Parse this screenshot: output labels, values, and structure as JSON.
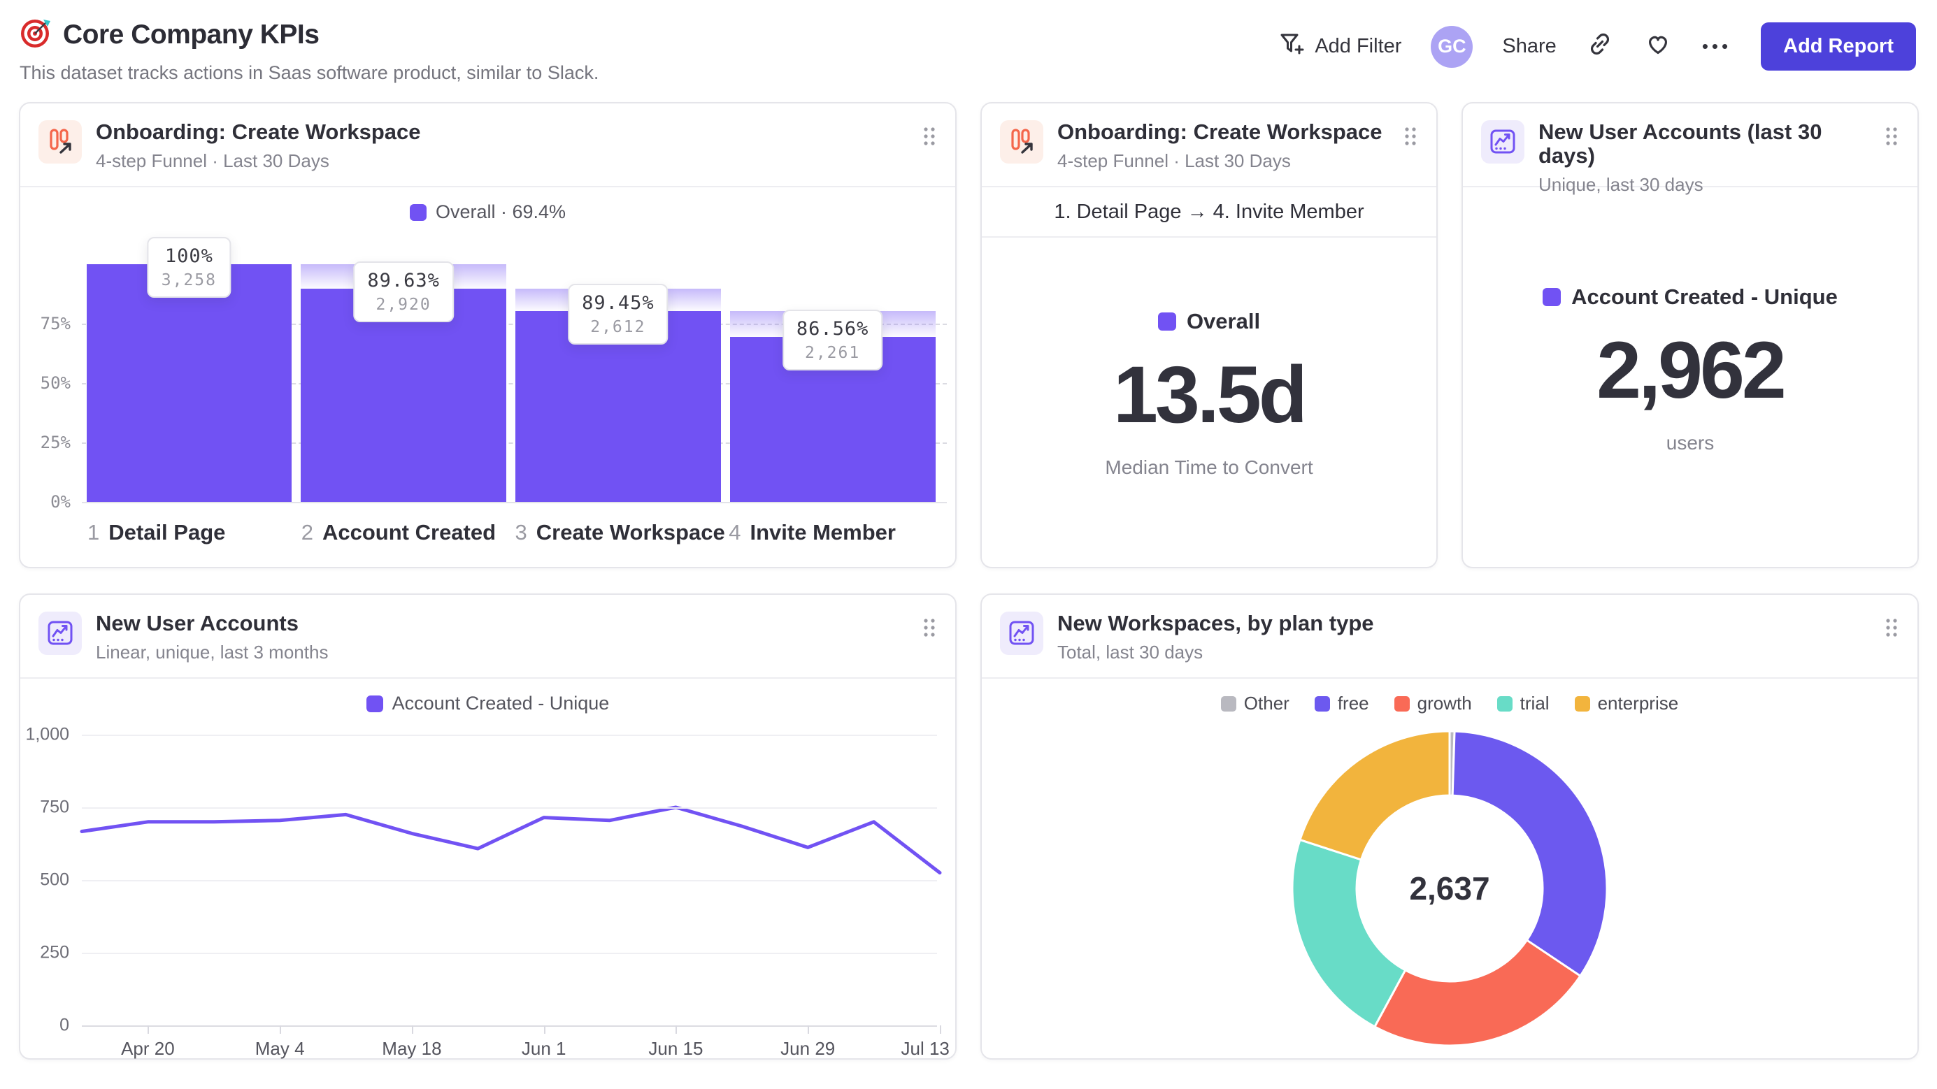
{
  "header": {
    "title": "Core Company KPIs",
    "subtitle": "This dataset tracks actions in Saas software product, similar to Slack.",
    "add_filter": "Add Filter",
    "avatar_initials": "GC",
    "share": "Share",
    "more": "•••",
    "add_report": "Add Report"
  },
  "colors": {
    "purple": "#7152F3",
    "button_indigo": "#4D41DB",
    "avatar_bg": "#ACA3F4",
    "funnel_icon_orange": "#F4664B",
    "gray_text": "#84848e"
  },
  "funnel_card": {
    "title": "Onboarding: Create Workspace",
    "subtitle": "4-step Funnel · Last 30 Days",
    "legend": "Overall · 69.4%"
  },
  "time_card": {
    "title": "Onboarding: Create Workspace",
    "subtitle": "4-step Funnel · Last 30 Days",
    "range": "1. Detail Page → 4. Invite Member",
    "legend": "Overall",
    "value": "13.5d",
    "caption": "Median Time to Convert"
  },
  "accounts_card": {
    "title": "New User Accounts (last 30 days)",
    "subtitle": "Unique, last 30 days",
    "legend": "Account Created - Unique",
    "value": "2,962",
    "caption": "users"
  },
  "line_card": {
    "title": "New User Accounts",
    "subtitle": "Linear, unique, last 3 months",
    "legend": "Account Created - Unique"
  },
  "donut_card": {
    "title": "New Workspaces, by plan type",
    "subtitle": "Total, last 30 days",
    "total": "2,637"
  },
  "chart_data": [
    {
      "type": "bar",
      "title": "Onboarding: Create Workspace — 4-step funnel, last 30 days",
      "overall_conversion": "69.4%",
      "ylim": [
        0,
        100
      ],
      "grid_pcts": [
        25,
        50,
        75
      ],
      "y_ticks": [
        {
          "label": "0%",
          "pct": 0
        },
        {
          "label": "25%",
          "pct": 25
        },
        {
          "label": "50%",
          "pct": 50
        },
        {
          "label": "75%",
          "pct": 75
        }
      ],
      "steps": [
        {
          "num": "1",
          "label": "Detail Page",
          "pct": 100,
          "pct_label": "100%",
          "count": "3,258"
        },
        {
          "num": "2",
          "label": "Account Created",
          "pct": 89.63,
          "pct_label": "89.63%",
          "count": "2,920"
        },
        {
          "num": "3",
          "label": "Create Workspace",
          "pct": 80.17,
          "pct_label": "89.45%",
          "count": "2,612"
        },
        {
          "num": "4",
          "label": "Invite Member",
          "pct": 69.4,
          "pct_label": "86.56%",
          "count": "2,261"
        }
      ]
    },
    {
      "type": "line",
      "title": "New User Accounts — linear, unique, last 3 months",
      "series_name": "Account Created - Unique",
      "ymax": 1000,
      "n_points": 14,
      "values": [
        667,
        700,
        700,
        705,
        725,
        660,
        608,
        715,
        705,
        750,
        685,
        612,
        700,
        525
      ],
      "y_ticks": [
        {
          "label": "1,000",
          "value": 1000
        },
        {
          "label": "750",
          "value": 750
        },
        {
          "label": "500",
          "value": 500
        },
        {
          "label": "250",
          "value": 250
        },
        {
          "label": "0",
          "value": 0
        }
      ],
      "x_ticks": [
        {
          "label": "Apr 20",
          "idx": 1
        },
        {
          "label": "May 4",
          "idx": 3
        },
        {
          "label": "May 18",
          "idx": 5
        },
        {
          "label": "Jun 1",
          "idx": 7
        },
        {
          "label": "Jun 15",
          "idx": 9
        },
        {
          "label": "Jun 29",
          "idx": 11
        },
        {
          "label": "Jul 13",
          "idx": 13
        }
      ]
    },
    {
      "type": "pie",
      "title": "New Workspaces, by plan type — total, last 30 days",
      "total_label": "2,637",
      "segments": [
        {
          "label": "Other",
          "pct": 0.5,
          "color": "#B9B9C0"
        },
        {
          "label": "free",
          "pct": 33.9,
          "color": "#6C59EF"
        },
        {
          "label": "growth",
          "pct": 23.5,
          "color": "#F96A56"
        },
        {
          "label": "trial",
          "pct": 22.1,
          "color": "#68DCC7"
        },
        {
          "label": "enterprise",
          "pct": 20.0,
          "color": "#F2B43D"
        }
      ]
    }
  ]
}
